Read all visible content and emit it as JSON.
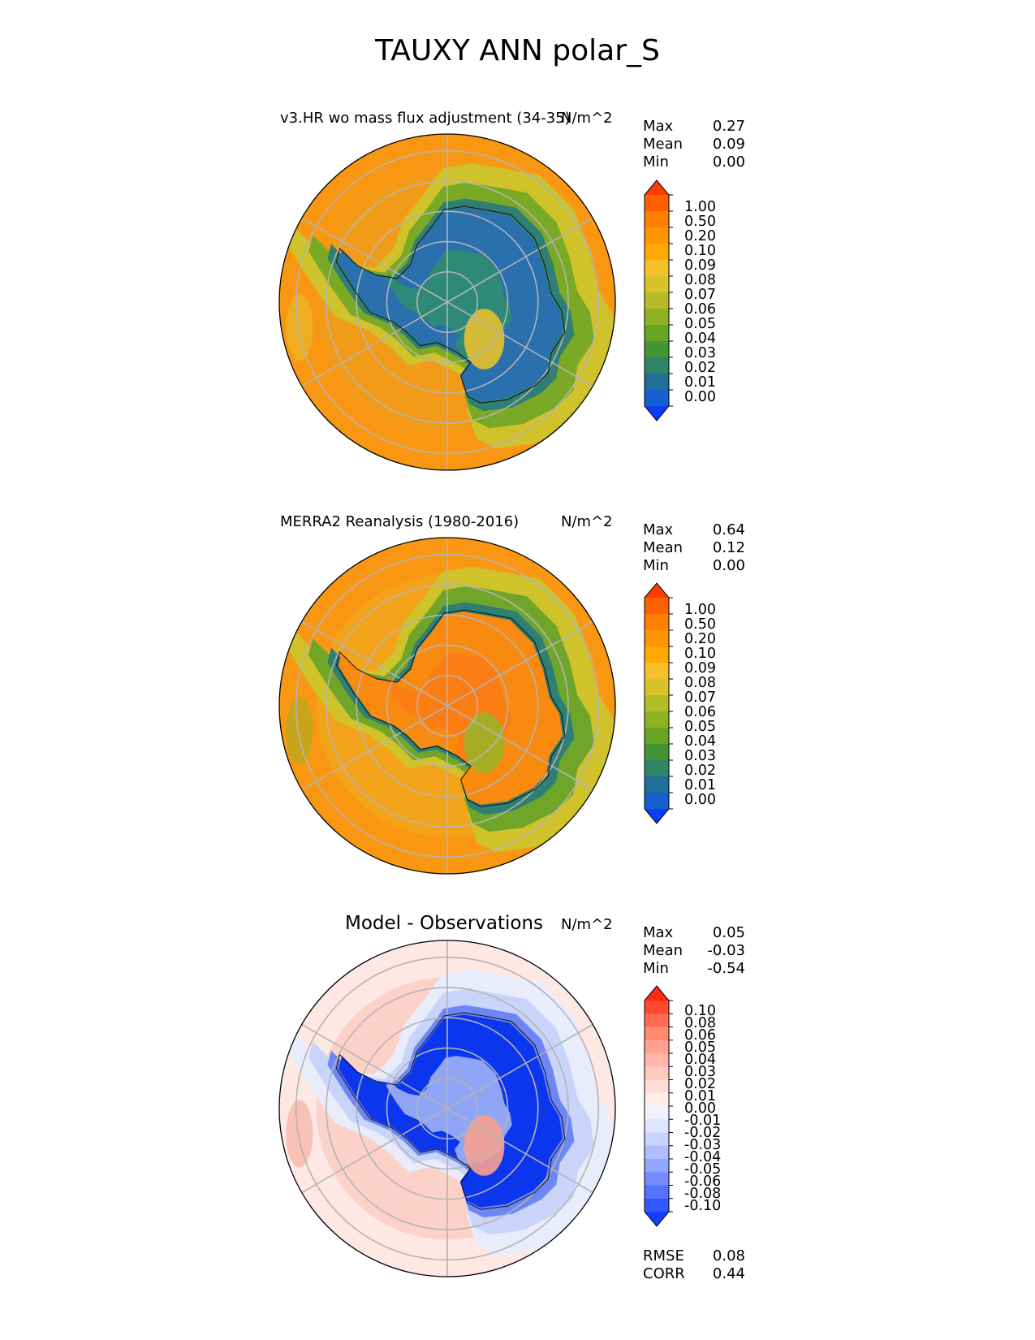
{
  "figure": {
    "title": "TAUXY ANN polar_S"
  },
  "panels": [
    {
      "id": "test",
      "title": "v3.HR wo mass flux adjustment (34-35)",
      "units": "N/m^2",
      "stats": [
        {
          "label": "Max",
          "value": "0.27"
        },
        {
          "label": "Mean",
          "value": "0.09"
        },
        {
          "label": "Min",
          "value": "0.00"
        }
      ],
      "colorbar": {
        "ticks": [
          "1.00",
          "0.50",
          "0.20",
          "0.10",
          "0.09",
          "0.08",
          "0.07",
          "0.06",
          "0.05",
          "0.04",
          "0.03",
          "0.02",
          "0.01",
          "0.00"
        ],
        "colors": [
          "#ff3c00",
          "#ff6000",
          "#ff7f00",
          "#ff9600",
          "#ffa800",
          "#f4c12a",
          "#d8c42a",
          "#b4bc28",
          "#8fb223",
          "#68a424",
          "#429635",
          "#2f8566",
          "#1f6f98",
          "#155fce",
          "#0a3cf5"
        ]
      },
      "map": {
        "ocean": "#f99713",
        "ring1": "#f29b18",
        "ring2": "#cfc22b",
        "ring3": "#7aa926",
        "coast": "#2f7f74",
        "interior": "#2a6fae",
        "inner": "#2f8e6d",
        "highlight": "#e7c02e"
      }
    },
    {
      "id": "ref",
      "title": "MERRA2 Reanalysis (1980-2016)",
      "units": "N/m^2",
      "stats": [
        {
          "label": "Max",
          "value": "0.64"
        },
        {
          "label": "Mean",
          "value": "0.12"
        },
        {
          "label": "Min",
          "value": "0.00"
        }
      ],
      "colorbar": {
        "ticks": [
          "1.00",
          "0.50",
          "0.20",
          "0.10",
          "0.09",
          "0.08",
          "0.07",
          "0.06",
          "0.05",
          "0.04",
          "0.03",
          "0.02",
          "0.01",
          "0.00"
        ],
        "colors": [
          "#ff3c00",
          "#ff6000",
          "#ff7f00",
          "#ff9600",
          "#ffa800",
          "#f4c12a",
          "#d8c42a",
          "#b4bc28",
          "#8fb223",
          "#68a424",
          "#429635",
          "#2f8566",
          "#1f6f98",
          "#155fce",
          "#0a3cf5"
        ]
      },
      "map": {
        "ocean": "#f99713",
        "ring1": "#f3a319",
        "ring2": "#cfc22b",
        "ring3": "#6fa62a",
        "coast": "#2f7f74",
        "interior": "#f88a10",
        "inner": "#fb7a14",
        "highlight": "#9cb126"
      }
    },
    {
      "id": "diff",
      "title": "Model - Observations",
      "units": "N/m^2",
      "stats": [
        {
          "label": "Max",
          "value": "0.05"
        },
        {
          "label": "Mean",
          "value": "-0.03"
        },
        {
          "label": "Min",
          "value": "-0.54"
        }
      ],
      "extra_stats": [
        {
          "label": "RMSE",
          "value": "0.08"
        },
        {
          "label": "CORR",
          "value": "0.44"
        }
      ],
      "colorbar": {
        "ticks": [
          "0.10",
          "0.08",
          "0.06",
          "0.05",
          "0.04",
          "0.03",
          "0.02",
          "0.01",
          "0.00",
          "-0.01",
          "-0.02",
          "-0.03",
          "-0.04",
          "-0.05",
          "-0.06",
          "-0.08",
          "-0.10"
        ],
        "colors": [
          "#ff2a10",
          "#ff4a30",
          "#ff6a50",
          "#ff8a70",
          "#ffa090",
          "#ffb5a8",
          "#ffcac0",
          "#ffdcd6",
          "#ffeeea",
          "#eef2ff",
          "#dfe5ff",
          "#c9d3ff",
          "#aebdff",
          "#92a6ff",
          "#748cff",
          "#5473ff",
          "#3358ff",
          "#1a3cff"
        ]
      },
      "map": {
        "ocean": "#fde8e4",
        "ring1": "#fcd2c8",
        "ring2": "#e9ecfb",
        "ring3": "#c9d4fb",
        "coast": "#6c86f4",
        "interior": "#0c36ee",
        "inner": "#a8b9f6",
        "highlight": "#f7a191"
      }
    }
  ]
}
